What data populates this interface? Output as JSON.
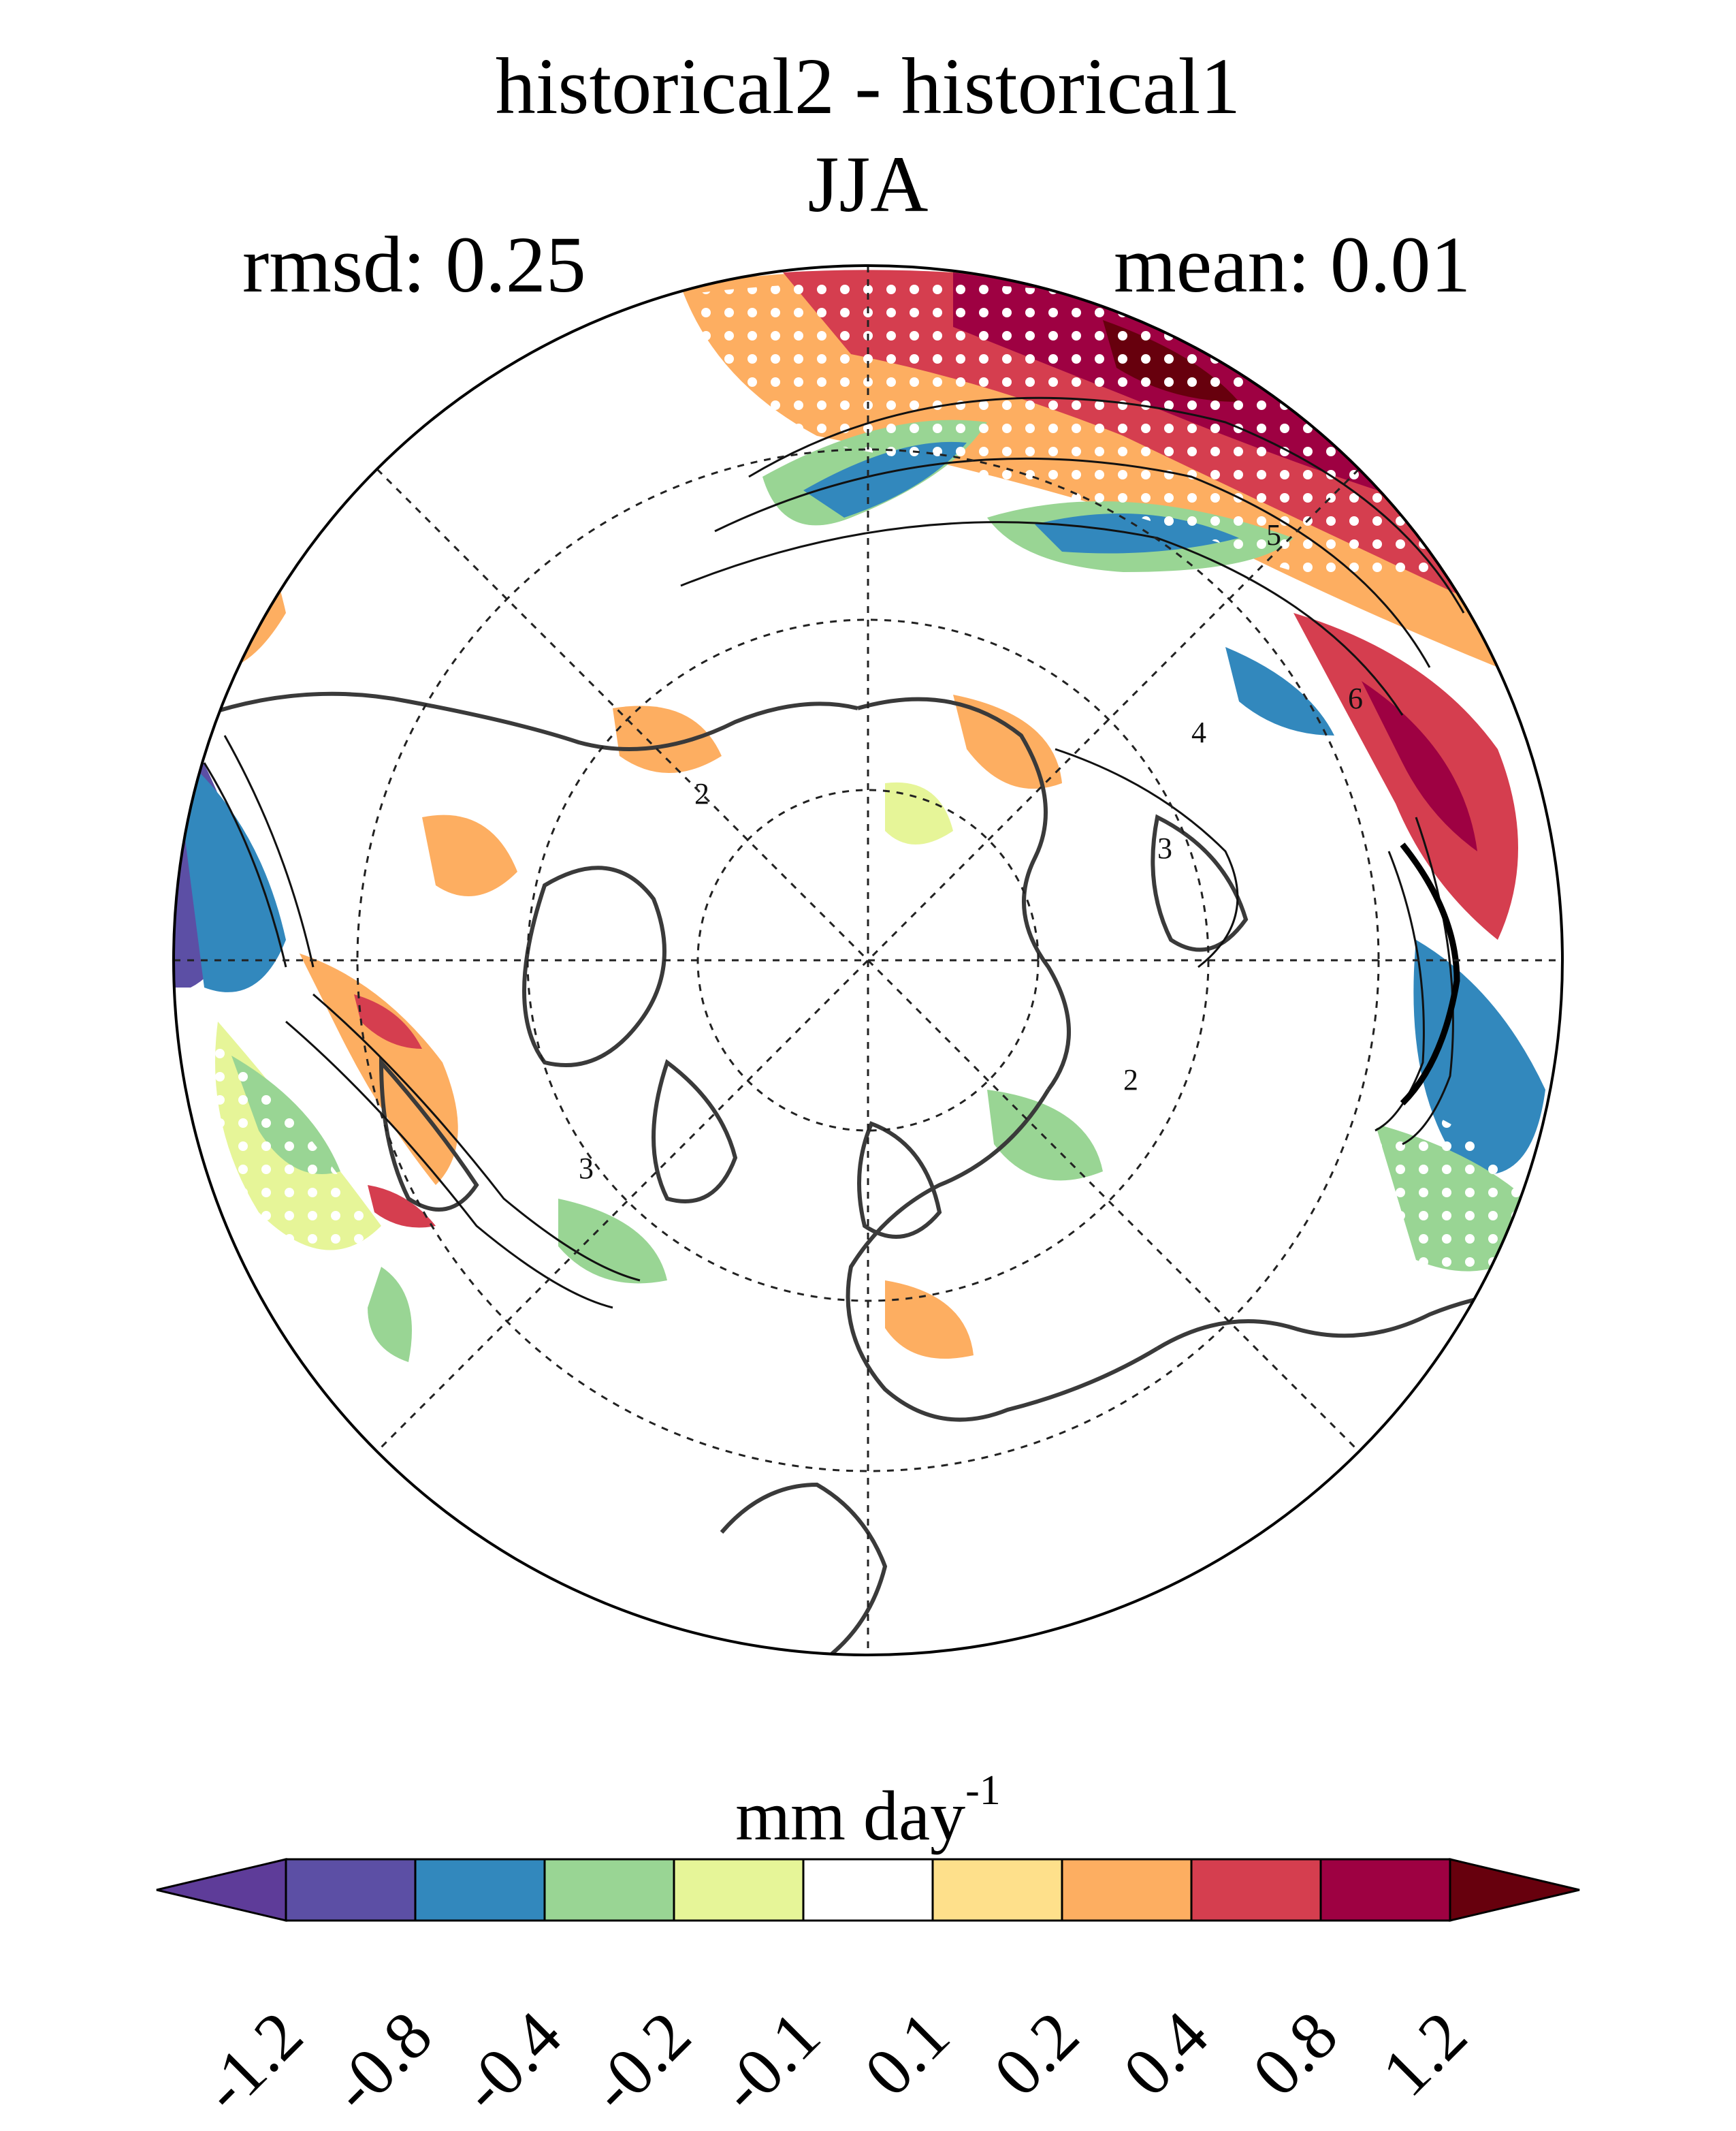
{
  "title": {
    "line1": "historical2 - historical1",
    "line2": "JJA",
    "rmsd": "rmsd: 0.25",
    "mean": "mean: 0.01"
  },
  "map": {
    "projection": "north polar stereographic",
    "field": "precipitation difference",
    "overlays": [
      "filled-difference-contours",
      "black-contour-lines",
      "white-stippling",
      "coastlines",
      "dashed-graticule"
    ],
    "contour_labels": [
      "5",
      "6",
      "4",
      "3",
      "2",
      "3",
      "2"
    ]
  },
  "colorbar": {
    "units_main": "mm day",
    "units_exp": "-1",
    "tick_labels": [
      "-1.2",
      "-0.8",
      "-0.4",
      "-0.2",
      "-0.1",
      "0.1",
      "0.2",
      "0.4",
      "0.8",
      "1.2"
    ],
    "colors": [
      "#5e3c99",
      "#5c4fa5",
      "#3288bd",
      "#99d594",
      "#e6f598",
      "#ffffff",
      "#fee08b",
      "#fdae61",
      "#d53e4f",
      "#9e0142",
      "#67000d"
    ]
  }
}
